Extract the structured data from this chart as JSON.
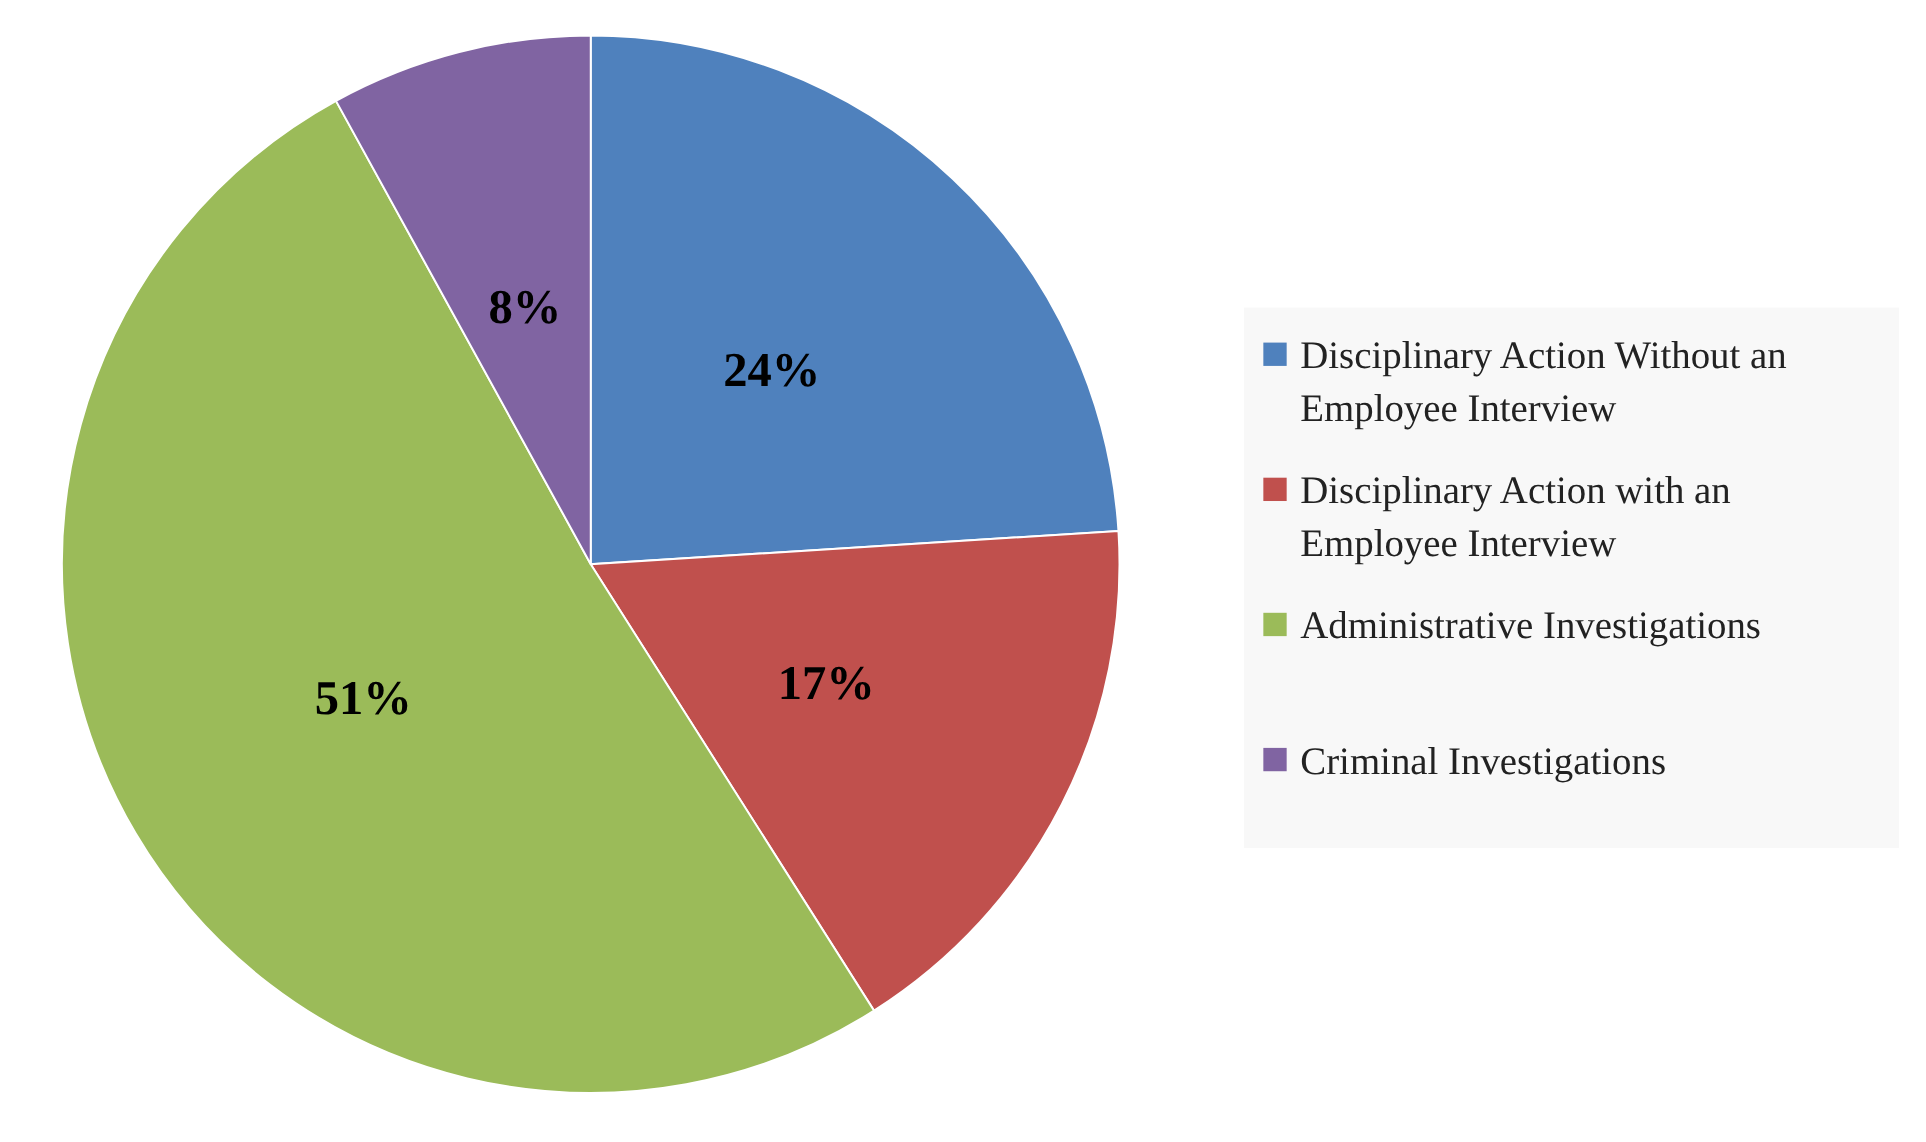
{
  "chart_data": {
    "type": "pie",
    "categories": [
      "Disciplinary Action Without an Employee Interview",
      "Disciplinary Action with an Employee Interview",
      "Administrative Investigations",
      "Criminal Investigations"
    ],
    "values": [
      24,
      17,
      51,
      8
    ],
    "value_labels": [
      "24%",
      "17%",
      "51%",
      "8%"
    ],
    "colors": [
      "#4f81bd",
      "#c0504d",
      "#9bbb59",
      "#8064a2"
    ],
    "legend": "right"
  }
}
